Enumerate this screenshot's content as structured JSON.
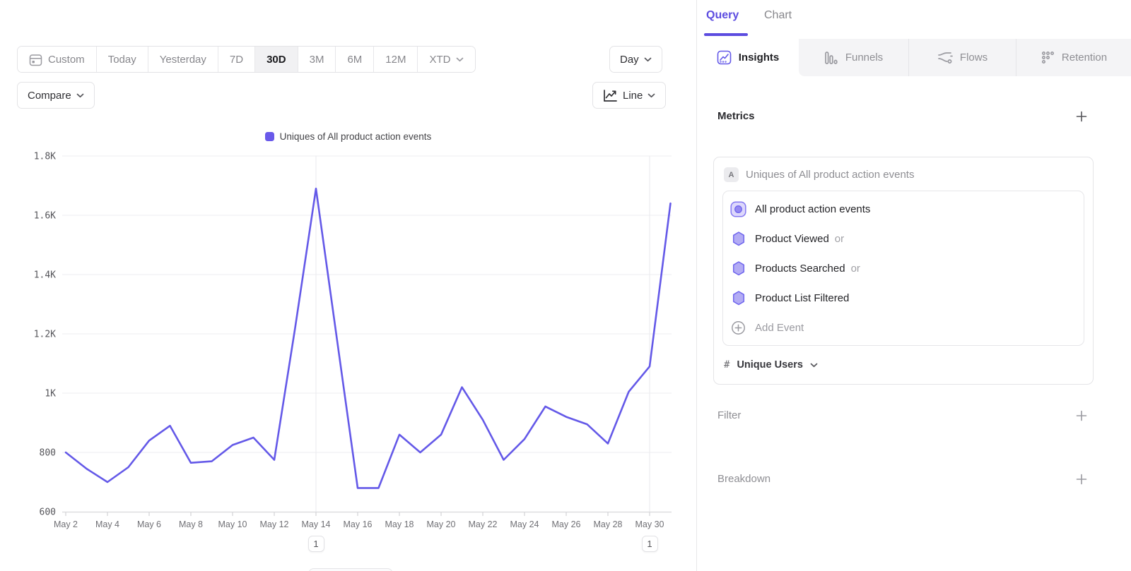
{
  "colors": {
    "accent": "#6459e8",
    "legend_swatch": "#6959ea",
    "hexagon_fill": "#b3acf4",
    "hexagon_stroke": "#7066ee",
    "all_events_fill": "#ddd8fb",
    "all_events_stroke": "#8377f1",
    "all_events_dot": "#9488f1",
    "selected_range_bg": "#f1f1f3"
  },
  "left_pane": {
    "toolbar": {
      "ranges": [
        {
          "label": "Custom",
          "icon": "calendar-icon"
        },
        {
          "label": "Today"
        },
        {
          "label": "Yesterday"
        },
        {
          "label": "7D"
        },
        {
          "label": "30D",
          "selected": true
        },
        {
          "label": "3M"
        },
        {
          "label": "6M"
        },
        {
          "label": "12M"
        },
        {
          "label": "XTD",
          "chevron": true
        }
      ],
      "granularity_label": "Day",
      "compare_label": "Compare",
      "chart_type_label": "Line"
    },
    "legend_label": "Uniques of All product action events"
  },
  "chart_data": {
    "type": "line",
    "legend": "Uniques of All product action events",
    "x": [
      "May 2",
      "May 3",
      "May 4",
      "May 5",
      "May 6",
      "May 7",
      "May 8",
      "May 9",
      "May 10",
      "May 11",
      "May 12",
      "May 13",
      "May 14",
      "May 15",
      "May 16",
      "May 17",
      "May 18",
      "May 19",
      "May 20",
      "May 21",
      "May 22",
      "May 23",
      "May 24",
      "May 25",
      "May 26",
      "May 27",
      "May 28",
      "May 29",
      "May 30",
      "May 31"
    ],
    "values": [
      800,
      745,
      700,
      750,
      840,
      890,
      765,
      770,
      825,
      850,
      775,
      1220,
      1690,
      1185,
      680,
      680,
      860,
      800,
      860,
      1020,
      910,
      775,
      845,
      955,
      920,
      895,
      830,
      1005,
      1090,
      1640
    ],
    "ylim": [
      600,
      1800
    ],
    "ytick_values": [
      600,
      800,
      1000,
      1200,
      1400,
      1600,
      1800
    ],
    "ytick_labels": [
      "600",
      "800",
      "1K",
      "1.2K",
      "1.4K",
      "1.6K",
      "1.8K"
    ],
    "xtick_every": 2,
    "grid": "horizontal, plus vertical lines at annotated dates",
    "legend_position": "top-center",
    "series_color": "#6459e8",
    "annotations": [
      {
        "x_label": "May 14",
        "label": "1"
      },
      {
        "x_label": "May 30",
        "label": "1"
      }
    ]
  },
  "right_panel": {
    "view_tabs": {
      "query": "Query",
      "chart": "Chart"
    },
    "report_tabs": [
      {
        "label": "Insights",
        "icon": "insights-icon",
        "active": true
      },
      {
        "label": "Funnels",
        "icon": "funnels-icon"
      },
      {
        "label": "Flows",
        "icon": "flows-icon"
      },
      {
        "label": "Retention",
        "icon": "retention-icon"
      }
    ],
    "metrics": {
      "title": "Metrics",
      "group_badge": "A",
      "group_title": "Uniques of All product action events",
      "events": [
        {
          "label": "All product action events",
          "icon": "all-events-icon"
        },
        {
          "label": "Product Viewed",
          "suffix": "or",
          "icon": "hexagon-icon"
        },
        {
          "label": "Products Searched",
          "suffix": "or",
          "icon": "hexagon-icon"
        },
        {
          "label": "Product List Filtered",
          "icon": "hexagon-icon"
        }
      ],
      "add_event_label": "Add Event",
      "measurement": {
        "prefix": "#",
        "label": "Unique Users"
      }
    },
    "filter_title": "Filter",
    "breakdown_title": "Breakdown"
  }
}
